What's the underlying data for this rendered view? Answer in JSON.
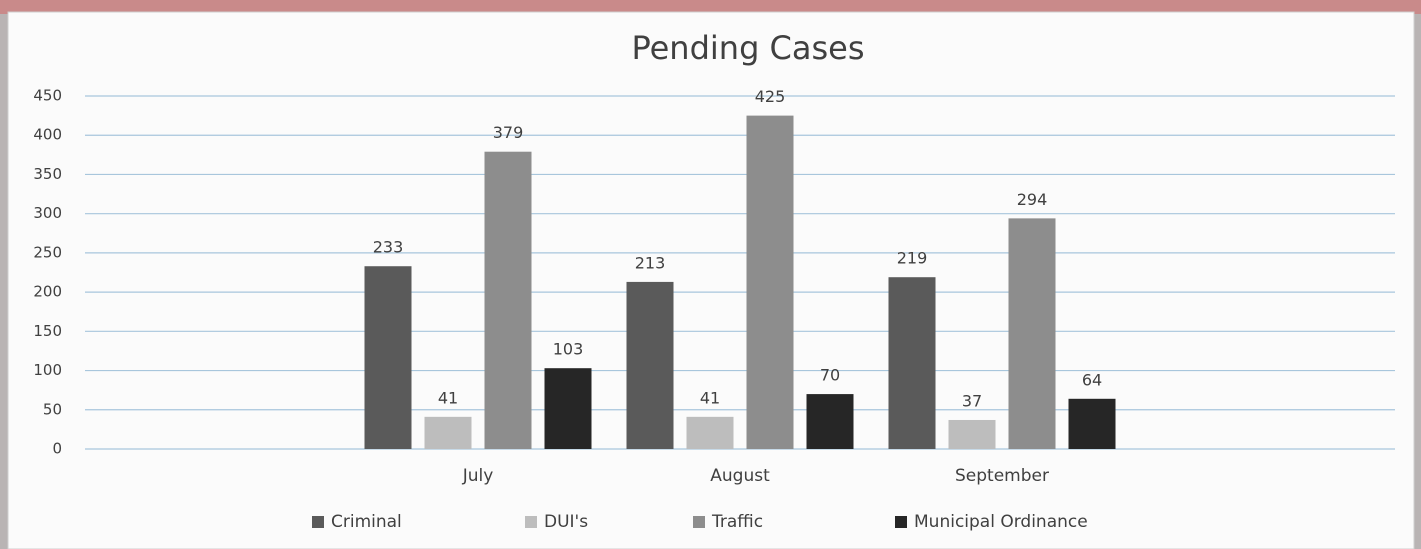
{
  "chart_data": {
    "type": "bar",
    "title": "Pending Cases",
    "categories": [
      null,
      "July",
      "August",
      "September",
      null
    ],
    "series": [
      {
        "name": "Criminal",
        "color": "#5a5a5a",
        "values": [
          null,
          233,
          213,
          219,
          null
        ]
      },
      {
        "name": "DUI's",
        "color": "#bdbdbd",
        "values": [
          null,
          41,
          41,
          37,
          null
        ]
      },
      {
        "name": "Traffic",
        "color": "#8d8d8d",
        "values": [
          null,
          379,
          425,
          294,
          null
        ]
      },
      {
        "name": "Municipal Ordinance",
        "color": "#262626",
        "values": [
          null,
          103,
          70,
          64,
          null
        ]
      }
    ],
    "ylim": [
      0,
      450
    ],
    "yticks": [
      0,
      50,
      100,
      150,
      200,
      250,
      300,
      350,
      400,
      450
    ],
    "grid": true,
    "legend": "bottom"
  }
}
